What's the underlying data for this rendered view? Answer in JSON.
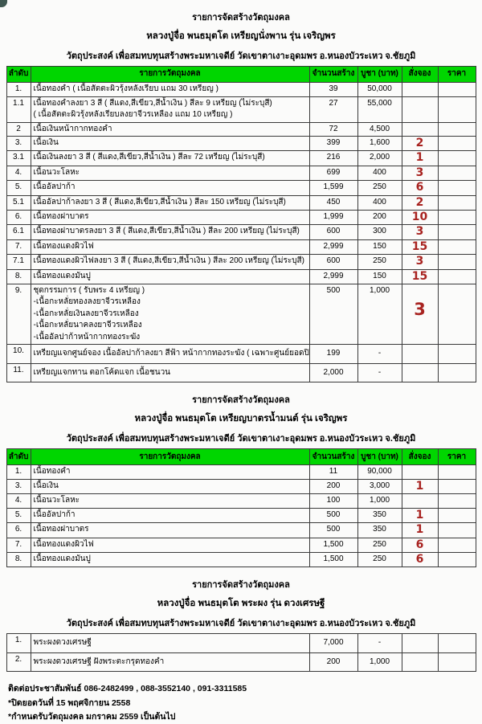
{
  "accent": {
    "header_green": "#00d600",
    "handwritten_red": "#a82320",
    "border": "#3a3a3a"
  },
  "header_columns": [
    "ลำดับ",
    "รายการวัตถุมงคล",
    "จำนวนสร้าง",
    "บูชา (บาท)",
    "สั่งจอง",
    "ราคา"
  ],
  "tables": [
    {
      "titles": [
        "รายการจัดสร้างวัตถุมงคล",
        "หลวงปู่จื่อ พนธมุตโต เหรียญนั่งพาน รุ่น เจริญพร",
        "วัตถุประสงค์ เพื่อสมทบทุนสร้างพระมหาเจดีย์ วัดเขาตาเงาะอุดมพร อ.หนองบัวระเหว จ.ชัยภูมิ"
      ],
      "show_header": true,
      "rows": [
        {
          "no": "1.",
          "lines": [
            "เนื้อทองคำ ( เนื้อสัตตะผิวรุ้งหลังเรียบ แถม 30 เหรียญ )"
          ],
          "qty": "39",
          "price": "50,000",
          "order": ""
        },
        {
          "no": "1.1",
          "lines": [
            "เนื้อทองคำลงยา 3 สี ( สีแดง,สีเขียว,สีน้ำเงิน ) สีละ 9 เหรียญ (ไม่ระบุสี)",
            "( เนื้อสัตตะผิวรุ้งหลังเรียบลงยาจีวรเหลือง แถม 10 เหรียญ )"
          ],
          "qty": "27",
          "price": "55,000",
          "order": ""
        },
        {
          "no": "2",
          "lines": [
            "เนื้อเงินหน้ากากทองคำ"
          ],
          "qty": "72",
          "price": "4,500",
          "order": ""
        },
        {
          "no": "3.",
          "lines": [
            "เนื้อเงิน"
          ],
          "qty": "399",
          "price": "1,600",
          "order": "2"
        },
        {
          "no": "3.1",
          "lines": [
            "เนื้อเงินลงยา 3 สี ( สีแดง,สีเขียว,สีน้ำเงิน )  สีละ 72 เหรียญ (ไม่ระบุสี)"
          ],
          "qty": "216",
          "price": "2,000",
          "order": "1"
        },
        {
          "no": "4.",
          "lines": [
            "เนื้อนวะโลหะ"
          ],
          "qty": "699",
          "price": "400",
          "order": "3"
        },
        {
          "no": "5.",
          "lines": [
            "เนื้ออัลปาก้า"
          ],
          "qty": "1,599",
          "price": "250",
          "order": "6"
        },
        {
          "no": "5.1",
          "lines": [
            "เนื้ออัลปาก้าลงยา 3 สี ( สีแดง,สีเขียว,สีน้ำเงิน )  สีละ 150 เหรียญ (ไม่ระบุสี)"
          ],
          "qty": "450",
          "price": "400",
          "order": "2"
        },
        {
          "no": "6.",
          "lines": [
            "เนื้อทองฝาบาตร"
          ],
          "qty": "1,999",
          "price": "200",
          "order": "10"
        },
        {
          "no": "6.1",
          "lines": [
            "เนื้อทองฝาบาตรลงยา 3 สี ( สีแดง,สีเขียว,สีน้ำเงิน ) สีละ 200 เหรียญ (ไม่ระบุสี)"
          ],
          "qty": "600",
          "price": "300",
          "order": "3"
        },
        {
          "no": "7.",
          "lines": [
            "เนื้อทองแดงผิวไฟ"
          ],
          "qty": "2,999",
          "price": "150",
          "order": "15"
        },
        {
          "no": "7.1",
          "lines": [
            "เนื้อทองแดงผิวไฟลงยา 3 สี ( สีแดง,สีเขียว,สีน้ำเงิน ) สีละ 200 เหรียญ (ไม่ระบุสี)"
          ],
          "qty": "600",
          "price": "250",
          "order": "3"
        },
        {
          "no": "8.",
          "lines": [
            "เนื้อทองแดงมันปู"
          ],
          "qty": "2,999",
          "price": "150",
          "order": "15"
        },
        {
          "no": "9.",
          "lines": [
            "ชุดกรรมการ ( รับพระ 4 เหรียญ )",
            "-เนื้อกะหลั่ยทองลงยาจีวรเหลือง",
            "-เนื้อกะหลั่ยเงินลงยาจีวรเหลือง",
            "-เนื้อกะหลั่ยนาคลงยาจีวรเหลือง",
            "-เนื้ออัลปาก้าหน้ากากทองระฆัง"
          ],
          "qty": "500",
          "price": "1,000",
          "order": "3",
          "order_big": true
        },
        {
          "no": "10.",
          "lines": [
            "เหรียญแจกศูนย์จอง เนื้ออัลปาก้าลงยา สีฟ้า หน้ากากทองระฆัง ( เฉพาะศูนย์ยอดปิด )"
          ],
          "qty": "199",
          "price": "-",
          "order": "",
          "tall": true
        },
        {
          "no": "11.",
          "lines": [
            "เหรียญแจกทาน ตอกโค้ดแจก เนื้อชนวน"
          ],
          "qty": "2,000",
          "price": "-",
          "order": "",
          "tall": true
        }
      ]
    },
    {
      "titles": [
        "รายการจัดสร้างวัตถุมงคล",
        "หลวงปู่จื่อ พนธมุตโต เหรียญบาตรน้ำมนต์ รุ่น เจริญพร",
        "วัตถุประสงค์ เพื่อสมทบทุนสร้างพระมหาเจดีย์ วัดเขาตาเงาะอุดมพร อ.หนองบัวระเหว จ.ชัยภูมิ"
      ],
      "show_header": true,
      "rows": [
        {
          "no": "1.",
          "lines": [
            "เนื้อทองคำ"
          ],
          "qty": "11",
          "price": "90,000",
          "order": ""
        },
        {
          "no": "3.",
          "lines": [
            "เนื้อเงิน"
          ],
          "qty": "200",
          "price": "3,000",
          "order": "1"
        },
        {
          "no": "4.",
          "lines": [
            "เนื้อนวะโลหะ"
          ],
          "qty": "100",
          "price": "1,000",
          "order": ""
        },
        {
          "no": "5.",
          "lines": [
            "เนื้ออัลปาก้า"
          ],
          "qty": "500",
          "price": "350",
          "order": "1"
        },
        {
          "no": "6.",
          "lines": [
            "เนื้อทองฝาบาตร"
          ],
          "qty": "500",
          "price": "350",
          "order": "1"
        },
        {
          "no": "7.",
          "lines": [
            "เนื้อทองแดงผิวไฟ"
          ],
          "qty": "1,500",
          "price": "250",
          "order": "6"
        },
        {
          "no": "8.",
          "lines": [
            "เนื้อทองแดงมันปู"
          ],
          "qty": "1,500",
          "price": "250",
          "order": "6"
        }
      ]
    },
    {
      "titles": [
        "รายการจัดสร้างวัตถุมงคล",
        "หลวงปู่จื่อ พนธมุตโต พระผง รุ่น ดวงเศรษฐี",
        "วัตถุประสงค์ เพื่อสมทบทุนสร้างพระมหาเจดีย์ วัดเขาตาเงาะอุดมพร อ.หนองบัวระเหว จ.ชัยภูมิ"
      ],
      "show_header": false,
      "rows": [
        {
          "no": "1.",
          "lines": [
            "พระผงดวงเศรษฐี"
          ],
          "qty": "7,000",
          "price": "-",
          "order": "",
          "tall": true
        },
        {
          "no": "2.",
          "lines": [
            "พระผงดวงเศรษฐี ฝังพระตะกรุดทองคำ"
          ],
          "qty": "200",
          "price": "1,000",
          "order": "",
          "tall": true
        }
      ]
    }
  ],
  "footer": {
    "contact": "ติดต่อประชาสัมพันธ์ 086-2482499 , 088-3552140 , 091-3311585",
    "note1": "*ปิดยอดวันที่ 15 พฤศจิกายน 2558",
    "note2": "*กำหนดรับวัตถุมงคล มกราคม 2559 เป็นต้นไป"
  }
}
